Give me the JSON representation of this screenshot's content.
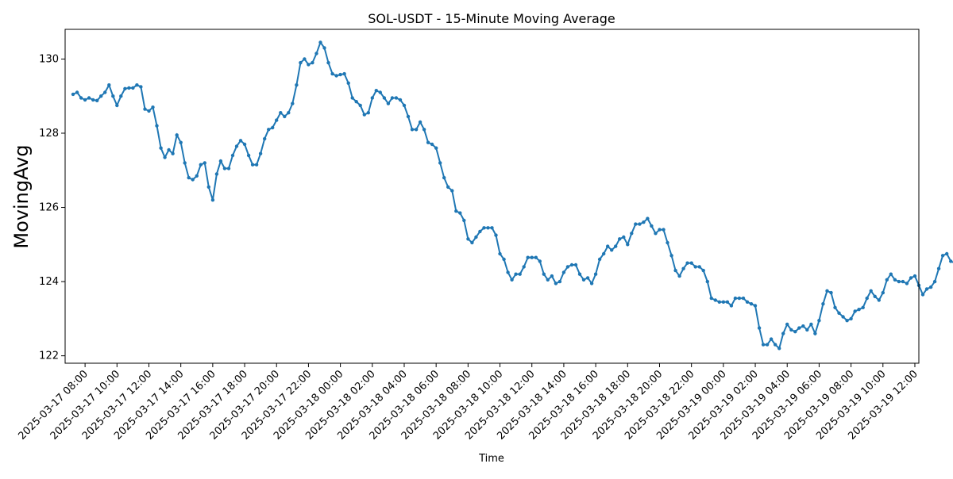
{
  "chart_data": {
    "type": "line",
    "title": "SOL-USDT - 15-Minute Moving Average",
    "xlabel": "Time",
    "ylabel": "MovingAvg",
    "series_color": "#1f77b4",
    "marker": "circle",
    "grid": false,
    "legend": "none",
    "x_range": [
      "2025-03-17 06:45",
      "2025-03-19 12:15"
    ],
    "ylim": [
      121.8,
      130.8
    ],
    "x_ticks": [
      "2025-03-17 08:00",
      "2025-03-17 10:00",
      "2025-03-17 12:00",
      "2025-03-17 14:00",
      "2025-03-17 16:00",
      "2025-03-17 18:00",
      "2025-03-17 20:00",
      "2025-03-17 22:00",
      "2025-03-18 00:00",
      "2025-03-18 02:00",
      "2025-03-18 04:00",
      "2025-03-18 06:00",
      "2025-03-18 08:00",
      "2025-03-18 10:00",
      "2025-03-18 12:00",
      "2025-03-18 14:00",
      "2025-03-18 16:00",
      "2025-03-18 18:00",
      "2025-03-18 20:00",
      "2025-03-18 22:00",
      "2025-03-19 00:00",
      "2025-03-19 02:00",
      "2025-03-19 04:00",
      "2025-03-19 06:00",
      "2025-03-19 08:00",
      "2025-03-19 10:00",
      "2025-03-19 12:00"
    ],
    "y_ticks": [
      122,
      124,
      126,
      128,
      130
    ],
    "series": [
      {
        "start": "2025-03-17 07:15",
        "interval_minutes": 15,
        "values": [
          129.05,
          129.1,
          128.95,
          128.9,
          128.95,
          128.9,
          128.88,
          129.0,
          129.1,
          129.3,
          129.0,
          128.75,
          129.0,
          129.2,
          129.22,
          129.22,
          129.3,
          129.25,
          128.65,
          128.6,
          128.7,
          128.2,
          127.6,
          127.35,
          127.55,
          127.45,
          127.95,
          127.75,
          127.2,
          126.8,
          126.75,
          126.85,
          127.15,
          127.2,
          126.55,
          126.2,
          126.9,
          127.25,
          127.05,
          127.05,
          127.4,
          127.65,
          127.8,
          127.7,
          127.4,
          127.15,
          127.15,
          127.45,
          127.85,
          128.1,
          128.15,
          128.35,
          128.55,
          128.45,
          128.55,
          128.8,
          129.3,
          129.9,
          130.0,
          129.85,
          129.9,
          130.15,
          130.45,
          130.3,
          129.9,
          129.6,
          129.55,
          129.58,
          129.6,
          129.35,
          128.95,
          128.85,
          128.75,
          128.5,
          128.55,
          128.95,
          129.15,
          129.1,
          128.95,
          128.8,
          128.95,
          128.95,
          128.9,
          128.75,
          128.45,
          128.1,
          128.1,
          128.3,
          128.1,
          127.75,
          127.7,
          127.6,
          127.2,
          126.8,
          126.55,
          126.45,
          125.9,
          125.85,
          125.65,
          125.15,
          125.05,
          125.2,
          125.35,
          125.45,
          125.45,
          125.45,
          125.25,
          124.75,
          124.6,
          124.25,
          124.05,
          124.2,
          124.2,
          124.4,
          124.65,
          124.65,
          124.65,
          124.55,
          124.2,
          124.05,
          124.15,
          123.95,
          124.0,
          124.25,
          124.4,
          124.45,
          124.45,
          124.2,
          124.05,
          124.1,
          123.95,
          124.2,
          124.6,
          124.75,
          124.95,
          124.85,
          124.95,
          125.15,
          125.2,
          125.0,
          125.3,
          125.55,
          125.55,
          125.6,
          125.7,
          125.5,
          125.3,
          125.4,
          125.4,
          125.05,
          124.7,
          124.3,
          124.15,
          124.35,
          124.5,
          124.5,
          124.4,
          124.4,
          124.3,
          124.0,
          123.55,
          123.5,
          123.45,
          123.45,
          123.45,
          123.35,
          123.55,
          123.55,
          123.55,
          123.45,
          123.4,
          123.35,
          122.75,
          122.3,
          122.3,
          122.45,
          122.3,
          122.2,
          122.6,
          122.85,
          122.7,
          122.65,
          122.75,
          122.8,
          122.7,
          122.85,
          122.6,
          122.95,
          123.4,
          123.75,
          123.7,
          123.3,
          123.15,
          123.05,
          122.95,
          123.0,
          123.2,
          123.25,
          123.3,
          123.55,
          123.75,
          123.6,
          123.5,
          123.7,
          124.05,
          124.2,
          124.05,
          124.0,
          124.0,
          123.95,
          124.1,
          124.15,
          123.9,
          123.65,
          123.8,
          123.85,
          124.0,
          124.35,
          124.7,
          124.75,
          124.55,
          124.5,
          124.55,
          124.65,
          124.7,
          124.7,
          124.65,
          124.75,
          125.05,
          125.35,
          125.4,
          125.25,
          125.15,
          125.2,
          125.3,
          125.4,
          125.6,
          125.8,
          125.9,
          125.9,
          125.85,
          125.55,
          125.15,
          124.9,
          124.85,
          124.95,
          124.75,
          124.6,
          124.8,
          124.8,
          124.55,
          124.45,
          124.65,
          124.9,
          125.05,
          125.1,
          125.5,
          126.0,
          126.35,
          126.3,
          126.05,
          125.95,
          125.95,
          125.95,
          126.05,
          126.1,
          125.85,
          125.8,
          125.7,
          125.7,
          125.85,
          126.0,
          126.3,
          126.25,
          126.1,
          126.0,
          126.15,
          126.2,
          126.15,
          126.35,
          126.25,
          126.0,
          125.85,
          126.0,
          126.0,
          125.95,
          126.05,
          126.1,
          126.2,
          126.3,
          126.45,
          126.55,
          126.45,
          126.35,
          126.55,
          126.55,
          126.6,
          126.85,
          126.95
        ]
      }
    ]
  }
}
